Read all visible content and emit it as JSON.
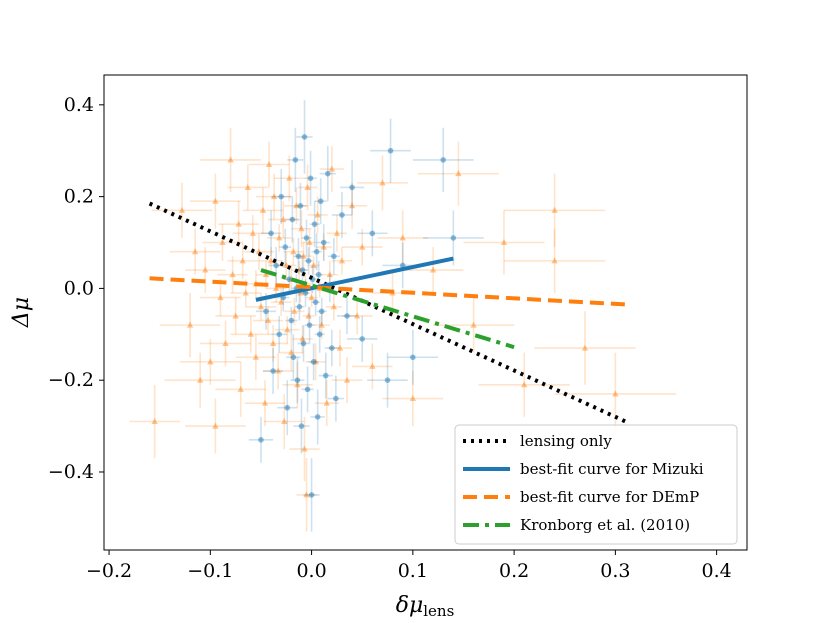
{
  "chart_data": {
    "type": "scatter",
    "title": "",
    "xlabel": "δμ",
    "xlabel_sub": "lens",
    "ylabel": "Δμ",
    "xlim": [
      -0.205,
      0.43
    ],
    "ylim": [
      -0.57,
      0.465
    ],
    "xticks": [
      -0.2,
      -0.1,
      0.0,
      0.1,
      0.2,
      0.3,
      0.4
    ],
    "xtick_labels": [
      "−0.2",
      "−0.1",
      "0.0",
      "0.1",
      "0.2",
      "0.3",
      "0.4"
    ],
    "yticks": [
      -0.4,
      -0.2,
      0.0,
      0.2,
      0.4
    ],
    "ytick_labels": [
      "−0.4",
      "−0.2",
      "0.0",
      "0.2",
      "0.4"
    ],
    "legend_position": "lower-right",
    "colors": {
      "mizuki": "#1f77b4",
      "demp": "#ff7f0e",
      "kronborg": "#2ca02c",
      "lensing": "#000000"
    },
    "lines": [
      {
        "name": "lensing only",
        "style": "dotted",
        "color": "#000000",
        "x": [
          -0.16,
          0.31
        ],
        "y": [
          0.185,
          -0.29
        ]
      },
      {
        "name": "best-fit curve for Mizuki",
        "style": "solid",
        "color": "#1f77b4",
        "x": [
          -0.055,
          0.14
        ],
        "y": [
          -0.025,
          0.065
        ]
      },
      {
        "name": "best-fit curve for DEmP",
        "style": "dashed",
        "color": "#ff7f0e",
        "x": [
          -0.16,
          0.31
        ],
        "y": [
          0.022,
          -0.035
        ]
      },
      {
        "name": "Kronborg et al. (2010)",
        "style": "dashdot",
        "color": "#2ca02c",
        "x": [
          -0.05,
          0.2
        ],
        "y": [
          0.04,
          -0.128
        ]
      }
    ],
    "series": [
      {
        "name": "DEmP",
        "marker": "triangle",
        "color": "#ff7f0e",
        "points": [
          [
            -0.155,
            -0.29,
            0.025,
            0.08
          ],
          [
            -0.128,
            0.17,
            0.03,
            0.06
          ],
          [
            -0.12,
            -0.08,
            0.03,
            0.07
          ],
          [
            -0.115,
            0.08,
            0.025,
            0.05
          ],
          [
            -0.11,
            -0.2,
            0.035,
            0.06
          ],
          [
            -0.105,
            0.04,
            0.02,
            0.05
          ],
          [
            -0.1,
            -0.16,
            0.03,
            0.05
          ],
          [
            -0.095,
            0.19,
            0.025,
            0.06
          ],
          [
            -0.095,
            -0.3,
            0.03,
            0.06
          ],
          [
            -0.09,
            -0.02,
            0.02,
            0.04
          ],
          [
            -0.088,
            0.1,
            0.02,
            0.04
          ],
          [
            -0.085,
            -0.12,
            0.025,
            0.05
          ],
          [
            -0.08,
            0.28,
            0.03,
            0.07
          ],
          [
            -0.078,
            0.03,
            0.015,
            0.04
          ],
          [
            -0.075,
            -0.06,
            0.02,
            0.04
          ],
          [
            -0.072,
            0.14,
            0.02,
            0.05
          ],
          [
            -0.07,
            -0.22,
            0.025,
            0.06
          ],
          [
            -0.068,
            0.06,
            0.015,
            0.04
          ],
          [
            -0.065,
            -0.01,
            0.015,
            0.03
          ],
          [
            -0.063,
            0.22,
            0.02,
            0.05
          ],
          [
            -0.06,
            -0.1,
            0.02,
            0.04
          ],
          [
            -0.058,
            0.12,
            0.02,
            0.04
          ],
          [
            -0.055,
            -0.15,
            0.02,
            0.05
          ],
          [
            -0.055,
            0.01,
            0.01,
            0.03
          ],
          [
            -0.052,
            0.08,
            0.015,
            0.04
          ],
          [
            -0.05,
            -0.04,
            0.015,
            0.03
          ],
          [
            -0.048,
            0.17,
            0.02,
            0.05
          ],
          [
            -0.046,
            -0.25,
            0.02,
            0.05
          ],
          [
            -0.045,
            0.03,
            0.01,
            0.03
          ],
          [
            -0.043,
            -0.07,
            0.015,
            0.03
          ],
          [
            -0.042,
            0.27,
            0.02,
            0.05
          ],
          [
            -0.04,
            0.06,
            0.012,
            0.03
          ],
          [
            -0.038,
            -0.12,
            0.015,
            0.04
          ],
          [
            -0.037,
            0.2,
            0.018,
            0.05
          ],
          [
            -0.035,
            0.0,
            0.01,
            0.03
          ],
          [
            -0.033,
            -0.18,
            0.015,
            0.04
          ],
          [
            -0.032,
            0.11,
            0.012,
            0.03
          ],
          [
            -0.03,
            -0.03,
            0.01,
            0.03
          ],
          [
            -0.028,
            0.15,
            0.015,
            0.04
          ],
          [
            -0.027,
            -0.29,
            0.02,
            0.06
          ],
          [
            -0.025,
            0.05,
            0.01,
            0.03
          ],
          [
            -0.024,
            -0.09,
            0.012,
            0.03
          ],
          [
            -0.022,
            0.24,
            0.015,
            0.05
          ],
          [
            -0.02,
            0.02,
            0.008,
            0.03
          ],
          [
            -0.02,
            -0.14,
            0.012,
            0.04
          ],
          [
            -0.018,
            0.08,
            0.01,
            0.03
          ],
          [
            -0.017,
            -0.05,
            0.01,
            0.03
          ],
          [
            -0.015,
            0.18,
            0.012,
            0.04
          ],
          [
            -0.014,
            -0.21,
            0.015,
            0.05
          ],
          [
            -0.012,
            0.04,
            0.008,
            0.02
          ],
          [
            -0.011,
            -0.01,
            0.008,
            0.02
          ],
          [
            -0.01,
            0.13,
            0.01,
            0.04
          ],
          [
            -0.009,
            -0.11,
            0.01,
            0.03
          ],
          [
            -0.008,
            0.07,
            0.008,
            0.03
          ],
          [
            -0.007,
            -0.35,
            0.015,
            0.07
          ],
          [
            -0.006,
            0.01,
            0.006,
            0.02
          ],
          [
            -0.005,
            -0.45,
            0.01,
            0.08
          ],
          [
            -0.004,
            0.22,
            0.01,
            0.05
          ],
          [
            -0.003,
            -0.06,
            0.006,
            0.02
          ],
          [
            -0.002,
            0.1,
            0.008,
            0.03
          ],
          [
            0.0,
            -0.02,
            0.006,
            0.02
          ],
          [
            0.002,
            0.05,
            0.006,
            0.02
          ],
          [
            0.004,
            -0.16,
            0.01,
            0.04
          ],
          [
            0.006,
            0.16,
            0.01,
            0.04
          ],
          [
            0.008,
            0.0,
            0.006,
            0.02
          ],
          [
            0.01,
            -0.08,
            0.008,
            0.03
          ],
          [
            0.012,
            0.09,
            0.008,
            0.03
          ],
          [
            0.015,
            -0.25,
            0.012,
            0.05
          ],
          [
            0.018,
            0.03,
            0.008,
            0.03
          ],
          [
            0.02,
            0.26,
            0.012,
            0.05
          ],
          [
            0.022,
            -0.04,
            0.008,
            0.03
          ],
          [
            0.025,
            0.12,
            0.01,
            0.04
          ],
          [
            0.028,
            -0.13,
            0.012,
            0.04
          ],
          [
            0.03,
            0.06,
            0.01,
            0.03
          ],
          [
            0.035,
            -0.2,
            0.015,
            0.05
          ],
          [
            0.04,
            0.18,
            0.015,
            0.05
          ],
          [
            0.045,
            -0.06,
            0.015,
            0.04
          ],
          [
            0.05,
            0.09,
            0.02,
            0.04
          ],
          [
            0.06,
            -0.17,
            0.02,
            0.05
          ],
          [
            0.07,
            0.23,
            0.025,
            0.06
          ],
          [
            0.08,
            -0.01,
            0.02,
            0.05
          ],
          [
            0.09,
            0.11,
            0.025,
            0.06
          ],
          [
            0.1,
            -0.24,
            0.03,
            0.06
          ],
          [
            0.12,
            0.04,
            0.03,
            0.05
          ],
          [
            0.145,
            0.25,
            0.04,
            0.07
          ],
          [
            0.16,
            -0.08,
            0.04,
            0.06
          ],
          [
            0.19,
            0.1,
            0.04,
            0.07
          ],
          [
            0.21,
            -0.21,
            0.045,
            0.07
          ],
          [
            0.24,
            0.17,
            0.05,
            0.08
          ],
          [
            0.24,
            0.06,
            0.05,
            0.07
          ],
          [
            0.27,
            -0.13,
            0.05,
            0.08
          ],
          [
            0.3,
            -0.23,
            0.06,
            0.09
          ]
        ]
      },
      {
        "name": "Mizuki",
        "marker": "circle",
        "color": "#1f77b4",
        "points": [
          [
            -0.05,
            -0.33,
            0.012,
            0.05
          ],
          [
            -0.045,
            -0.05,
            0.01,
            0.04
          ],
          [
            -0.04,
            0.12,
            0.01,
            0.05
          ],
          [
            -0.038,
            -0.18,
            0.01,
            0.05
          ],
          [
            -0.035,
            0.05,
            0.008,
            0.04
          ],
          [
            -0.032,
            -0.1,
            0.008,
            0.04
          ],
          [
            -0.03,
            0.2,
            0.01,
            0.06
          ],
          [
            -0.028,
            -0.02,
            0.006,
            0.03
          ],
          [
            -0.026,
            0.09,
            0.006,
            0.04
          ],
          [
            -0.024,
            -0.26,
            0.01,
            0.06
          ],
          [
            -0.022,
            0.02,
            0.005,
            0.03
          ],
          [
            -0.02,
            -0.07,
            0.006,
            0.03
          ],
          [
            -0.019,
            0.15,
            0.007,
            0.05
          ],
          [
            -0.018,
            -0.15,
            0.007,
            0.05
          ],
          [
            -0.016,
            0.28,
            0.008,
            0.07
          ],
          [
            -0.015,
            0.0,
            0.005,
            0.03
          ],
          [
            -0.014,
            -0.2,
            0.007,
            0.05
          ],
          [
            -0.013,
            0.07,
            0.005,
            0.04
          ],
          [
            -0.012,
            -0.04,
            0.005,
            0.03
          ],
          [
            -0.011,
            0.18,
            0.006,
            0.05
          ],
          [
            -0.01,
            -0.3,
            0.008,
            0.06
          ],
          [
            -0.009,
            0.04,
            0.005,
            0.03
          ],
          [
            -0.008,
            -0.12,
            0.006,
            0.04
          ],
          [
            -0.007,
            0.33,
            0.008,
            0.08
          ],
          [
            -0.006,
            -0.01,
            0.004,
            0.03
          ],
          [
            -0.005,
            0.11,
            0.005,
            0.04
          ],
          [
            -0.004,
            -0.22,
            0.006,
            0.05
          ],
          [
            -0.003,
            0.06,
            0.004,
            0.03
          ],
          [
            -0.002,
            -0.08,
            0.005,
            0.04
          ],
          [
            -0.001,
            0.24,
            0.006,
            0.06
          ],
          [
            0.0,
            -0.45,
            0.008,
            0.08
          ],
          [
            0.001,
            0.02,
            0.004,
            0.03
          ],
          [
            0.002,
            -0.16,
            0.005,
            0.04
          ],
          [
            0.003,
            0.14,
            0.005,
            0.05
          ],
          [
            0.004,
            -0.03,
            0.004,
            0.03
          ],
          [
            0.005,
            0.08,
            0.005,
            0.04
          ],
          [
            0.006,
            -0.28,
            0.007,
            0.06
          ],
          [
            0.007,
            0.03,
            0.004,
            0.03
          ],
          [
            0.008,
            -0.1,
            0.005,
            0.04
          ],
          [
            0.009,
            0.19,
            0.006,
            0.05
          ],
          [
            0.01,
            -0.05,
            0.005,
            0.03
          ],
          [
            0.012,
            0.1,
            0.006,
            0.04
          ],
          [
            0.014,
            -0.19,
            0.007,
            0.05
          ],
          [
            0.016,
            0.25,
            0.008,
            0.06
          ],
          [
            0.018,
            0.0,
            0.005,
            0.03
          ],
          [
            0.02,
            -0.13,
            0.007,
            0.04
          ],
          [
            0.022,
            0.07,
            0.006,
            0.04
          ],
          [
            0.024,
            -0.24,
            0.008,
            0.05
          ],
          [
            0.03,
            0.16,
            0.01,
            0.05
          ],
          [
            0.035,
            -0.06,
            0.01,
            0.04
          ],
          [
            0.04,
            0.22,
            0.012,
            0.06
          ],
          [
            0.05,
            -0.11,
            0.015,
            0.05
          ],
          [
            0.06,
            0.12,
            0.015,
            0.05
          ],
          [
            0.075,
            -0.2,
            0.02,
            0.06
          ],
          [
            0.078,
            0.3,
            0.02,
            0.07
          ],
          [
            0.09,
            0.05,
            0.02,
            0.05
          ],
          [
            0.13,
            0.28,
            0.03,
            0.07
          ],
          [
            0.14,
            0.11,
            0.03,
            0.06
          ],
          [
            0.1,
            -0.15,
            0.025,
            0.06
          ]
        ]
      }
    ]
  }
}
